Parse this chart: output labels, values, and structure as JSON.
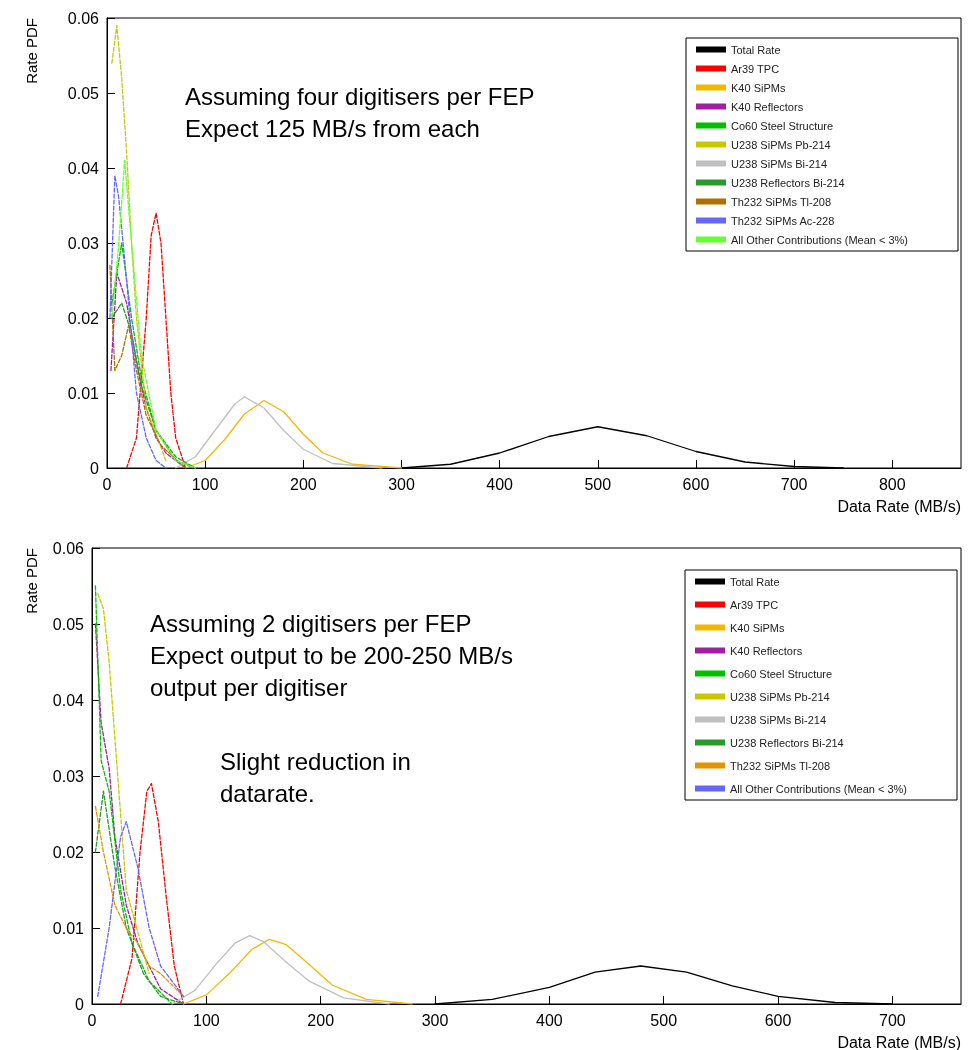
{
  "chart_data": [
    {
      "type": "line",
      "xlabel": "Data Rate (MB/s)",
      "ylabel": "Rate PDF",
      "xlim": [
        0,
        870
      ],
      "xticks": [
        0,
        100,
        200,
        300,
        400,
        500,
        600,
        700,
        800
      ],
      "ylim": [
        0,
        0.06
      ],
      "yticks": [
        0,
        0.01,
        0.02,
        0.03,
        0.04,
        0.05,
        0.06
      ],
      "legend": "top right",
      "annotations": [
        "Assuming four digitisers per FEP\nExpect 125 MB/s from each"
      ],
      "series": [
        {
          "name": "Total Rate",
          "color": "#000000",
          "line_style": "solid",
          "x": [
            300,
            350,
            400,
            450,
            500,
            550,
            600,
            650,
            700,
            750
          ],
          "values": [
            0,
            0.0005,
            0.002,
            0.0042,
            0.0055,
            0.0043,
            0.0022,
            0.0008,
            0.0002,
            0
          ]
        },
        {
          "name": "Ar39 TPC",
          "color": "#ff0000",
          "line_style": "dashed",
          "x": [
            20,
            30,
            40,
            45,
            50,
            55,
            60,
            65,
            70,
            80
          ],
          "values": [
            0,
            0.004,
            0.02,
            0.031,
            0.034,
            0.03,
            0.02,
            0.01,
            0.004,
            0
          ]
        },
        {
          "name": "K40 SiPMs",
          "color": "#f5b800",
          "line_style": "solid",
          "x": [
            80,
            100,
            120,
            140,
            160,
            180,
            200,
            220,
            250,
            300
          ],
          "values": [
            0,
            0.001,
            0.0038,
            0.0072,
            0.009,
            0.0075,
            0.0045,
            0.002,
            0.0005,
            0
          ]
        },
        {
          "name": "K40 Reflectors",
          "color": "#a020a0",
          "line_style": "dashed",
          "x": [
            4,
            10,
            20,
            30,
            40,
            50,
            60,
            80
          ],
          "values": [
            0.013,
            0.026,
            0.022,
            0.014,
            0.008,
            0.004,
            0.002,
            0
          ]
        },
        {
          "name": "Co60 Steel Structure",
          "color": "#00c000",
          "line_style": "dashed",
          "x": [
            5,
            15,
            25,
            35,
            50,
            70,
            90
          ],
          "values": [
            0.022,
            0.03,
            0.02,
            0.012,
            0.005,
            0.001,
            0
          ]
        },
        {
          "name": "U238 SiPMs Pb-214",
          "color": "#c8c800",
          "line_style": "dashed",
          "x": [
            5,
            10,
            15,
            20,
            25,
            30,
            40,
            60
          ],
          "values": [
            0.054,
            0.059,
            0.052,
            0.042,
            0.03,
            0.02,
            0.008,
            0.001
          ]
        },
        {
          "name": "U238 SiPMs Bi-214",
          "color": "#c0c0c0",
          "line_style": "solid",
          "x": [
            70,
            90,
            110,
            130,
            140,
            160,
            180,
            200,
            230,
            280
          ],
          "values": [
            0,
            0.0015,
            0.005,
            0.0085,
            0.0095,
            0.008,
            0.005,
            0.0025,
            0.0006,
            0
          ]
        },
        {
          "name": "U238 Reflectors Bi-214",
          "color": "#2a9a2a",
          "line_style": "dashed",
          "x": [
            5,
            15,
            25,
            35,
            50,
            70,
            90
          ],
          "values": [
            0.02,
            0.022,
            0.018,
            0.011,
            0.005,
            0.0015,
            0
          ]
        },
        {
          "name": "Th232 SiPMs Tl-208",
          "color": "#b07000",
          "line_style": "dashed",
          "x": [
            3,
            8,
            15,
            22,
            30,
            40,
            55,
            80
          ],
          "values": [
            0.027,
            0.013,
            0.015,
            0.019,
            0.013,
            0.007,
            0.003,
            0
          ]
        },
        {
          "name": "Th232 SiPMs Ac-228",
          "color": "#6666ff",
          "line_style": "dashed",
          "x": [
            3,
            8,
            12,
            20,
            30,
            40,
            50,
            60
          ],
          "values": [
            0.02,
            0.039,
            0.036,
            0.025,
            0.01,
            0.004,
            0.001,
            0
          ]
        },
        {
          "name": "All Other Contributions (Mean < 3%)",
          "color": "#66ff33",
          "line_style": "dashed",
          "x": [
            5,
            12,
            18,
            25,
            35,
            50,
            70,
            90
          ],
          "values": [
            0.02,
            0.03,
            0.041,
            0.03,
            0.015,
            0.005,
            0.001,
            0
          ]
        }
      ]
    },
    {
      "type": "line",
      "xlabel": "Data Rate (MB/s)",
      "ylabel": "Rate PDF",
      "xlim": [
        0,
        760
      ],
      "xticks": [
        0,
        100,
        200,
        300,
        400,
        500,
        600,
        700
      ],
      "ylim": [
        0,
        0.06
      ],
      "yticks": [
        0,
        0.01,
        0.02,
        0.03,
        0.04,
        0.05,
        0.06
      ],
      "legend": "top right",
      "annotations": [
        "Assuming 2 digitisers per FEP\nExpect output to be 200-250 MB/s\noutput per digitiser",
        "Slight reduction in\ndatarate."
      ],
      "series": [
        {
          "name": "Total Rate",
          "color": "#000000",
          "line_style": "solid",
          "x": [
            300,
            350,
            400,
            440,
            480,
            520,
            560,
            600,
            650,
            700
          ],
          "values": [
            0,
            0.0006,
            0.0022,
            0.0042,
            0.005,
            0.0042,
            0.0024,
            0.001,
            0.0002,
            0
          ]
        },
        {
          "name": "Ar39 TPC",
          "color": "#ff0000",
          "line_style": "dashed",
          "x": [
            25,
            35,
            42,
            48,
            52,
            58,
            65,
            72,
            80
          ],
          "values": [
            0,
            0.006,
            0.02,
            0.028,
            0.029,
            0.024,
            0.014,
            0.005,
            0
          ]
        },
        {
          "name": "K40 SiPMs",
          "color": "#f5b800",
          "line_style": "solid",
          "x": [
            80,
            100,
            120,
            140,
            155,
            170,
            190,
            210,
            240,
            280
          ],
          "values": [
            0,
            0.0012,
            0.004,
            0.0072,
            0.0085,
            0.0078,
            0.0052,
            0.0025,
            0.0006,
            0
          ]
        },
        {
          "name": "K40 Reflectors",
          "color": "#a020a0",
          "line_style": "dashed",
          "x": [
            3,
            8,
            15,
            20,
            30,
            40,
            60,
            80
          ],
          "values": [
            0.05,
            0.037,
            0.031,
            0.022,
            0.013,
            0.008,
            0.002,
            0
          ]
        },
        {
          "name": "Co60 Steel Structure",
          "color": "#00c000",
          "line_style": "dashed",
          "x": [
            3,
            8,
            15,
            25,
            35,
            50,
            70
          ],
          "values": [
            0.055,
            0.032,
            0.028,
            0.015,
            0.008,
            0.003,
            0
          ]
        },
        {
          "name": "U238 SiPMs Pb-214",
          "color": "#c8c800",
          "line_style": "dashed",
          "x": [
            5,
            10,
            15,
            20,
            30,
            50
          ],
          "values": [
            0.054,
            0.052,
            0.045,
            0.035,
            0.015,
            0.004
          ]
        },
        {
          "name": "U238 SiPMs Bi-214",
          "color": "#c0c0c0",
          "line_style": "solid",
          "x": [
            70,
            90,
            110,
            125,
            138,
            150,
            170,
            190,
            220,
            260
          ],
          "values": [
            0,
            0.0018,
            0.0055,
            0.008,
            0.009,
            0.0082,
            0.0055,
            0.003,
            0.0008,
            0
          ]
        },
        {
          "name": "U238 Reflectors Bi-214",
          "color": "#2a9a2a",
          "line_style": "dashed",
          "x": [
            3,
            10,
            20,
            30,
            45,
            60,
            80
          ],
          "values": [
            0.02,
            0.028,
            0.018,
            0.01,
            0.004,
            0.001,
            0
          ]
        },
        {
          "name": "Th232 SiPMs Tl-208",
          "color": "#e69500",
          "line_style": "dashed",
          "x": [
            3,
            10,
            20,
            30,
            40,
            50,
            60,
            80
          ],
          "values": [
            0.026,
            0.02,
            0.013,
            0.01,
            0.008,
            0.005,
            0.004,
            0.001
          ]
        },
        {
          "name": "All Other Contributions (Mean < 3%)",
          "color": "#6666ff",
          "line_style": "dashed",
          "x": [
            5,
            15,
            25,
            30,
            40,
            50,
            60,
            80
          ],
          "values": [
            0.001,
            0.01,
            0.022,
            0.024,
            0.018,
            0.01,
            0.005,
            0.001
          ]
        }
      ]
    }
  ]
}
